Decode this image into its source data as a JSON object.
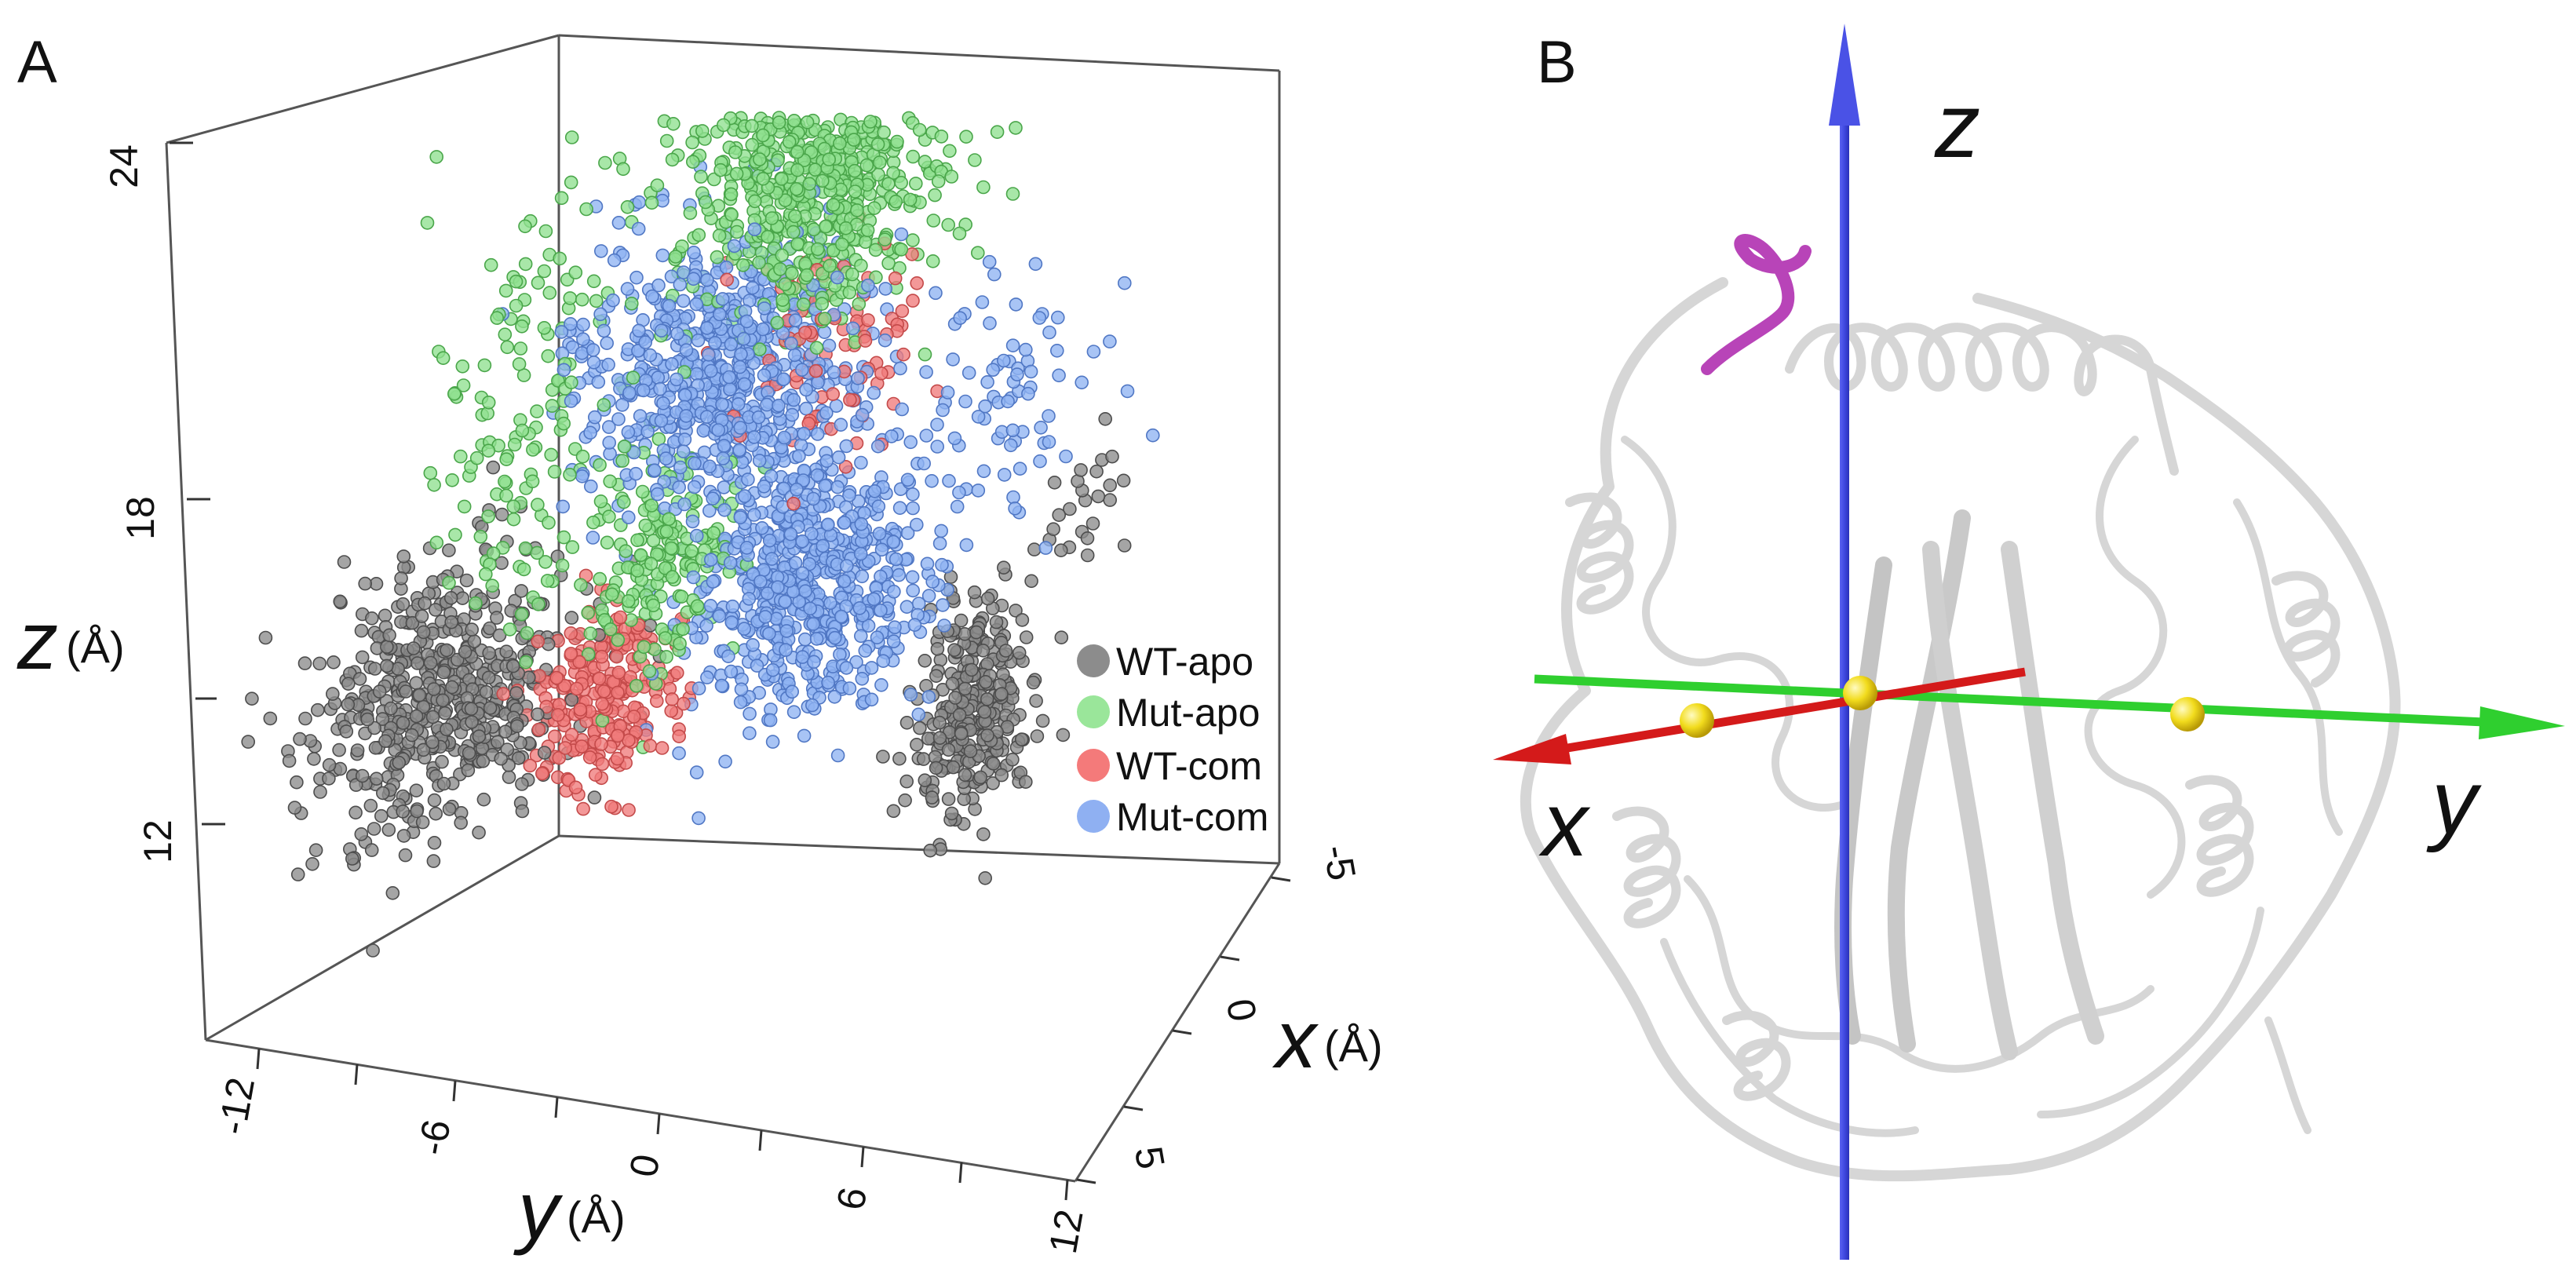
{
  "panels": {
    "a": {
      "letter": "A"
    },
    "b": {
      "letter": "B"
    }
  },
  "chart_data": [
    {
      "type": "scatter",
      "dimensions": 3,
      "x_axis": {
        "label": "x",
        "unit": "(Å)",
        "ticks": [
          "-5",
          "0",
          "5"
        ],
        "range": [
          -5,
          5
        ]
      },
      "y_axis": {
        "label": "y",
        "unit": "(Å)",
        "ticks": [
          "-12",
          "-6",
          "0",
          "6",
          "12"
        ],
        "range": [
          -12,
          12
        ]
      },
      "z_axis": {
        "label": "z",
        "unit": "(Å)",
        "ticks": [
          "12",
          "18",
          "24"
        ],
        "range": [
          8,
          24
        ]
      },
      "legend_position": "right",
      "series": [
        {
          "name": "WT-apo",
          "color": "#8c8c8c",
          "edge": "#4d4d4d",
          "clusters": [
            {
              "center": [
                1.5,
                -7.5,
                12.5
              ],
              "spread": [
                2.0,
                2.2,
                1.1
              ],
              "count": 550
            },
            {
              "center": [
                -2.5,
                5.0,
                11.5
              ],
              "spread": [
                1.2,
                1.0,
                1.1
              ],
              "count": 300
            },
            {
              "center": [
                -3.5,
                7.5,
                15.0
              ],
              "spread": [
                1.0,
                0.8,
                0.8
              ],
              "count": 25
            }
          ]
        },
        {
          "name": "Mut-apo",
          "color": "#8fe08f",
          "edge": "#4aa64a",
          "clusters": [
            {
              "center": [
                -1.5,
                1.0,
                21.0
              ],
              "spread": [
                1.5,
                2.3,
                1.3
              ],
              "count": 650
            },
            {
              "center": [
                1.5,
                -5.0,
                18.0
              ],
              "spread": [
                1.2,
                1.8,
                2.2
              ],
              "count": 150
            },
            {
              "center": [
                0.5,
                -2.0,
                15.0
              ],
              "spread": [
                1.2,
                1.2,
                1.3
              ],
              "count": 180
            }
          ]
        },
        {
          "name": "WT-com",
          "color": "#f07b7b",
          "edge": "#c44a4a",
          "clusters": [
            {
              "center": [
                0.5,
                -3.5,
                12.5
              ],
              "spread": [
                1.2,
                1.1,
                0.8
              ],
              "count": 260
            },
            {
              "center": [
                -1.0,
                2.0,
                18.5
              ],
              "spread": [
                1.0,
                1.6,
                1.0
              ],
              "count": 100
            }
          ]
        },
        {
          "name": "Mut-com",
          "color": "#8fb3f2",
          "edge": "#5077c4",
          "clusters": [
            {
              "center": [
                0.0,
                -0.5,
                18.5
              ],
              "spread": [
                1.6,
                2.3,
                1.3
              ],
              "count": 650
            },
            {
              "center": [
                -0.5,
                1.5,
                14.5
              ],
              "spread": [
                1.4,
                2.0,
                1.4
              ],
              "count": 650
            },
            {
              "center": [
                -1.0,
                6.5,
                18.0
              ],
              "spread": [
                1.5,
                1.8,
                1.5
              ],
              "count": 80
            }
          ]
        }
      ]
    }
  ],
  "structure_view": {
    "axis_labels": {
      "x": "x",
      "y": "y",
      "z": "z"
    },
    "axis_colors": {
      "x": "#d41a1a",
      "y": "#2fcf2f",
      "z": "#3f48e0"
    },
    "ribbon_color": "#d9d9d9",
    "loop_color": "#b844b8",
    "marker_color": "#f2dc1d"
  }
}
